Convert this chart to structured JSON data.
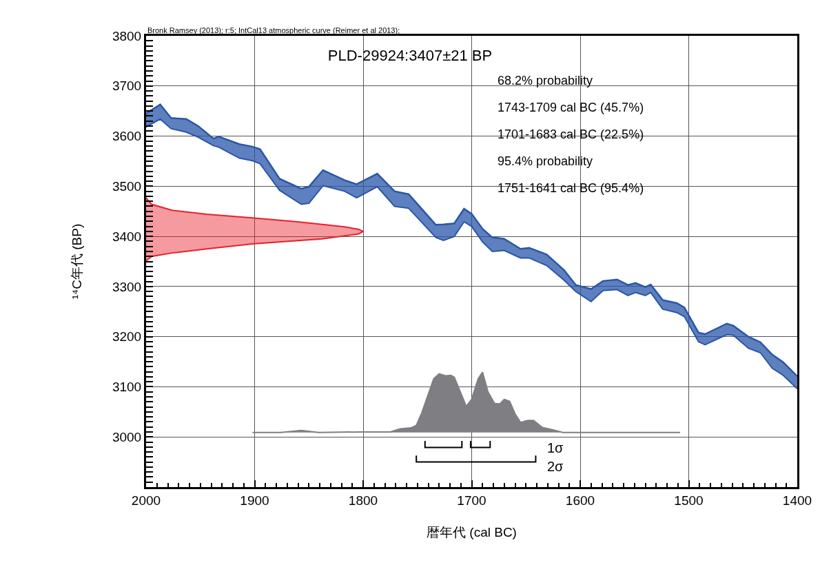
{
  "chart_data": {
    "type": "line",
    "title": "PLD-29924:3407±21 BP",
    "xlabel": "暦年代 (cal BC)",
    "ylabel": "¹⁴C年代 (BP)",
    "annotations": [
      "Bronk Ramsey (2013); r:5; IntCal13 atmospheric curve (Reimer et al 2013);",
      "68.2% probability",
      "1743-1709 cal BC (45.7%)",
      "1701-1683 cal BC (22.5%)",
      "95.4% probability",
      "1751-1641 cal BC (95.4%)",
      "1σ",
      "2σ"
    ],
    "xlim": [
      2000,
      1400
    ],
    "ylim": [
      2900,
      3800
    ],
    "xticks": [
      2000,
      {
        "value": 1990,
        "label": null
      },
      {
        "value": 1980,
        "label": null
      },
      {
        "value": 1970,
        "label": null
      },
      {
        "value": 1960,
        "label": null
      },
      {
        "value": 1950,
        "label": null
      },
      {
        "value": 1940,
        "label": null
      },
      {
        "value": 1930,
        "label": null
      },
      {
        "value": 1920,
        "label": null
      },
      {
        "value": 1910,
        "label": null
      },
      1900,
      {
        "value": 1890,
        "label": null
      },
      {
        "value": 1880,
        "label": null
      },
      {
        "value": 1870,
        "label": null
      },
      {
        "value": 1860,
        "label": null
      },
      {
        "value": 1850,
        "label": null
      },
      {
        "value": 1840,
        "label": null
      },
      {
        "value": 1830,
        "label": null
      },
      {
        "value": 1820,
        "label": null
      },
      {
        "value": 1810,
        "label": null
      },
      1800,
      {
        "value": 1790,
        "label": null
      },
      {
        "value": 1780,
        "label": null
      },
      {
        "value": 1770,
        "label": null
      },
      {
        "value": 1760,
        "label": null
      },
      {
        "value": 1750,
        "label": null
      },
      {
        "value": 1740,
        "label": null
      },
      {
        "value": 1730,
        "label": null
      },
      {
        "value": 1720,
        "label": null
      },
      {
        "value": 1710,
        "label": null
      },
      1700,
      {
        "value": 1690,
        "label": null
      },
      {
        "value": 1680,
        "label": null
      },
      {
        "value": 1670,
        "label": null
      },
      {
        "value": 1660,
        "label": null
      },
      {
        "value": 1650,
        "label": null
      },
      {
        "value": 1640,
        "label": null
      },
      {
        "value": 1630,
        "label": null
      },
      {
        "value": 1620,
        "label": null
      },
      {
        "value": 1610,
        "label": null
      },
      1600,
      {
        "value": 1590,
        "label": null
      },
      {
        "value": 1580,
        "label": null
      },
      {
        "value": 1570,
        "label": null
      },
      {
        "value": 1560,
        "label": null
      },
      {
        "value": 1550,
        "label": null
      },
      {
        "value": 1540,
        "label": null
      },
      {
        "value": 1530,
        "label": null
      },
      {
        "value": 1520,
        "label": null
      },
      {
        "value": 1510,
        "label": null
      },
      1500,
      {
        "value": 1490,
        "label": null
      },
      {
        "value": 1480,
        "label": null
      },
      {
        "value": 1470,
        "label": null
      },
      {
        "value": 1460,
        "label": null
      },
      {
        "value": 1450,
        "label": null
      },
      {
        "value": 1440,
        "label": null
      },
      {
        "value": 1430,
        "label": null
      },
      {
        "value": 1420,
        "label": null
      },
      {
        "value": 1410,
        "label": null
      },
      1400
    ],
    "yticks": [
      {
        "value": 2910,
        "label": null
      },
      {
        "value": 2920,
        "label": null
      },
      {
        "value": 2930,
        "label": null
      },
      {
        "value": 2940,
        "label": null
      },
      {
        "value": 2950,
        "label": null
      },
      {
        "value": 2960,
        "label": null
      },
      {
        "value": 2970,
        "label": null
      },
      {
        "value": 2980,
        "label": null
      },
      {
        "value": 2990,
        "label": null
      },
      3000,
      {
        "value": 3010,
        "label": null
      },
      {
        "value": 3020,
        "label": null
      },
      {
        "value": 3030,
        "label": null
      },
      {
        "value": 3040,
        "label": null
      },
      {
        "value": 3050,
        "label": null
      },
      {
        "value": 3060,
        "label": null
      },
      {
        "value": 3070,
        "label": null
      },
      {
        "value": 3080,
        "label": null
      },
      {
        "value": 3090,
        "label": null
      },
      3100,
      {
        "value": 3110,
        "label": null
      },
      {
        "value": 3120,
        "label": null
      },
      {
        "value": 3130,
        "label": null
      },
      {
        "value": 3140,
        "label": null
      },
      {
        "value": 3150,
        "label": null
      },
      {
        "value": 3160,
        "label": null
      },
      {
        "value": 3170,
        "label": null
      },
      {
        "value": 3180,
        "label": null
      },
      {
        "value": 3190,
        "label": null
      },
      3200,
      {
        "value": 3210,
        "label": null
      },
      {
        "value": 3220,
        "label": null
      },
      {
        "value": 3230,
        "label": null
      },
      {
        "value": 3240,
        "label": null
      },
      {
        "value": 3250,
        "label": null
      },
      {
        "value": 3260,
        "label": null
      },
      {
        "value": 3270,
        "label": null
      },
      {
        "value": 3280,
        "label": null
      },
      {
        "value": 3290,
        "label": null
      },
      3300,
      {
        "value": 3310,
        "label": null
      },
      {
        "value": 3320,
        "label": null
      },
      {
        "value": 3330,
        "label": null
      },
      {
        "value": 3340,
        "label": null
      },
      {
        "value": 3350,
        "label": null
      },
      {
        "value": 3360,
        "label": null
      },
      {
        "value": 3370,
        "label": null
      },
      {
        "value": 3380,
        "label": null
      },
      {
        "value": 3390,
        "label": null
      },
      3400,
      {
        "value": 3410,
        "label": null
      },
      {
        "value": 3420,
        "label": null
      },
      {
        "value": 3430,
        "label": null
      },
      {
        "value": 3440,
        "label": null
      },
      {
        "value": 3450,
        "label": null
      },
      {
        "value": 3460,
        "label": null
      },
      {
        "value": 3470,
        "label": null
      },
      {
        "value": 3480,
        "label": null
      },
      {
        "value": 3490,
        "label": null
      },
      3500,
      {
        "value": 3510,
        "label": null
      },
      {
        "value": 3520,
        "label": null
      },
      {
        "value": 3530,
        "label": null
      },
      {
        "value": 3540,
        "label": null
      },
      {
        "value": 3550,
        "label": null
      },
      {
        "value": 3560,
        "label": null
      },
      {
        "value": 3570,
        "label": null
      },
      {
        "value": 3580,
        "label": null
      },
      {
        "value": 3590,
        "label": null
      },
      3600,
      {
        "value": 3610,
        "label": null
      },
      {
        "value": 3620,
        "label": null
      },
      {
        "value": 3630,
        "label": null
      },
      {
        "value": 3640,
        "label": null
      },
      {
        "value": 3650,
        "label": null
      },
      {
        "value": 3660,
        "label": null
      },
      {
        "value": 3670,
        "label": null
      },
      {
        "value": 3680,
        "label": null
      },
      {
        "value": 3690,
        "label": null
      },
      3700,
      {
        "value": 3710,
        "label": null
      },
      {
        "value": 3720,
        "label": null
      },
      {
        "value": 3730,
        "label": null
      },
      {
        "value": 3740,
        "label": null
      },
      {
        "value": 3750,
        "label": null
      },
      {
        "value": 3760,
        "label": null
      },
      {
        "value": 3770,
        "label": null
      },
      {
        "value": 3780,
        "label": null
      },
      {
        "value": 3790,
        "label": null
      },
      3800
    ],
    "grid": true,
    "marker": "none",
    "line_style": "solid",
    "series": [
      {
        "color": "#2a56a8",
        "x": [
          2000,
          1987,
          1977,
          1963,
          1952,
          1938,
          1933,
          1914,
          1902,
          1895,
          1877,
          1857,
          1850,
          1837,
          1817,
          1806,
          1787,
          1771,
          1758,
          1733,
          1726,
          1716,
          1707,
          1700,
          1690,
          1681,
          1670,
          1655,
          1647,
          1631,
          1615,
          1604,
          1590,
          1579,
          1566,
          1556,
          1549,
          1540,
          1535,
          1524,
          1511,
          1504,
          1491,
          1485,
          1465,
          1459,
          1445,
          1434,
          1423,
          1413,
          1400
        ],
        "values": [
          3618,
          3634,
          3615,
          3608,
          3598,
          3581,
          3578,
          3556,
          3551,
          3545,
          3492,
          3464,
          3466,
          3501,
          3490,
          3477,
          3499,
          3460,
          3456,
          3398,
          3392,
          3400,
          3429,
          3420,
          3389,
          3370,
          3372,
          3357,
          3357,
          3342,
          3313,
          3290,
          3270,
          3292,
          3294,
          3282,
          3288,
          3282,
          3288,
          3255,
          3248,
          3240,
          3190,
          3184,
          3204,
          3203,
          3177,
          3168,
          3137,
          3123,
          3096
        ]
      },
      {
        "color": "#2a56a8",
        "x": [
          2000,
          1987,
          1977,
          1963,
          1952,
          1938,
          1933,
          1914,
          1902,
          1895,
          1877,
          1857,
          1850,
          1837,
          1817,
          1806,
          1787,
          1771,
          1758,
          1733,
          1726,
          1716,
          1707,
          1700,
          1690,
          1681,
          1670,
          1655,
          1647,
          1631,
          1615,
          1604,
          1590,
          1579,
          1566,
          1556,
          1549,
          1540,
          1535,
          1524,
          1511,
          1504,
          1491,
          1485,
          1465,
          1459,
          1445,
          1434,
          1423,
          1413,
          1400
        ],
        "values": [
          3645,
          3663,
          3636,
          3634,
          3620,
          3595,
          3599,
          3584,
          3579,
          3574,
          3515,
          3495,
          3499,
          3532,
          3512,
          3504,
          3525,
          3490,
          3484,
          3423,
          3424,
          3426,
          3455,
          3445,
          3415,
          3398,
          3395,
          3375,
          3377,
          3364,
          3333,
          3303,
          3295,
          3311,
          3314,
          3303,
          3307,
          3299,
          3304,
          3273,
          3267,
          3258,
          3208,
          3205,
          3226,
          3222,
          3200,
          3189,
          3164,
          3149,
          3121
        ],
        "lower": [
          3618,
          3634,
          3615,
          3608,
          3598,
          3581,
          3578,
          3556,
          3551,
          3545,
          3492,
          3464,
          3466,
          3501,
          3490,
          3477,
          3499,
          3460,
          3456,
          3398,
          3392,
          3400,
          3429,
          3420,
          3389,
          3370,
          3372,
          3357,
          3357,
          3342,
          3313,
          3290,
          3270,
          3292,
          3294,
          3282,
          3288,
          3282,
          3288,
          3255,
          3248,
          3240,
          3190,
          3184,
          3204,
          3203,
          3177,
          3168,
          3137,
          3123,
          3096
        ],
        "upper": [
          3645,
          3663,
          3636,
          3634,
          3620,
          3595,
          3599,
          3584,
          3579,
          3574,
          3515,
          3495,
          3499,
          3532,
          3512,
          3504,
          3525,
          3490,
          3484,
          3423,
          3424,
          3426,
          3455,
          3445,
          3415,
          3398,
          3395,
          3375,
          3377,
          3364,
          3333,
          3303,
          3295,
          3311,
          3314,
          3303,
          3307,
          3299,
          3304,
          3273,
          3267,
          3258,
          3208,
          3205,
          3226,
          3222,
          3200,
          3189,
          3164,
          3149,
          3121
        ]
      },
      {
        "type": "area",
        "color": "#e8202a",
        "x": [
          2000,
          1995,
          1976,
          1944,
          1902,
          1860,
          1817,
          1804,
          1800,
          1804,
          1838,
          1902,
          1944,
          1976,
          1995,
          2000
        ],
        "values": [
          3477,
          3464,
          3452,
          3444,
          3437,
          3429,
          3419,
          3414,
          3410,
          3405,
          3395,
          3385,
          3375,
          3367,
          3360,
          3351
        ]
      },
      {
        "type": "area",
        "color": "#7f7f83",
        "x": [
          1902,
          1876,
          1857,
          1841,
          1801,
          1775,
          1766,
          1756,
          1751,
          1746,
          1735,
          1730,
          1724,
          1719,
          1716,
          1705,
          1700,
          1694,
          1690,
          1685,
          1679,
          1674,
          1670,
          1665,
          1660,
          1655,
          1648,
          1643,
          1635,
          1625,
          1616,
          1508
        ],
        "values": [
          3009,
          3009,
          3013,
          3009,
          3010,
          3010,
          3016,
          3018,
          3023,
          3048,
          3116,
          3126,
          3122,
          3123,
          3119,
          3061,
          3075,
          3116,
          3129,
          3090,
          3067,
          3066,
          3075,
          3071,
          3046,
          3029,
          3033,
          3033,
          3019,
          3014,
          3009,
          3009
        ]
      },
      {
        "color": "#000000",
        "x": [
          1743,
          1743,
          1709,
          1709
        ],
        "values": [
          2992,
          2979,
          2979,
          2992
        ]
      },
      {
        "color": "#000000",
        "x": [
          1701,
          1701,
          1683,
          1683
        ],
        "values": [
          2992,
          2979,
          2979,
          2992
        ]
      },
      {
        "color": "#000000",
        "x": [
          1751,
          1751,
          1641,
          1641
        ],
        "values": [
          2963,
          2950,
          2950,
          2963
        ]
      }
    ]
  }
}
